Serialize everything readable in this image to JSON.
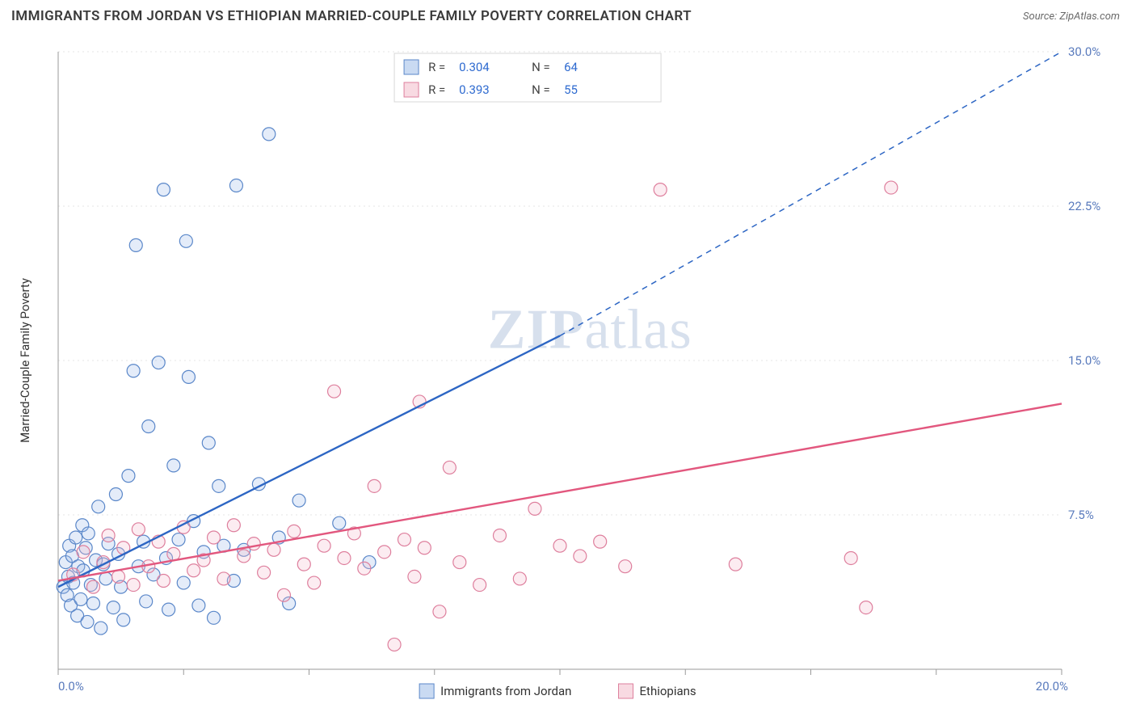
{
  "title": "IMMIGRANTS FROM JORDAN VS ETHIOPIAN MARRIED-COUPLE FAMILY POVERTY CORRELATION CHART",
  "source_label": "Source: ZipAtlas.com",
  "watermark": "ZIPatlas",
  "y_axis_label": "Married-Couple Family Poverty",
  "chart": {
    "type": "scatter",
    "background_color": "#ffffff",
    "grid_color": "#e4e4e4",
    "grid_dash": "2,4",
    "axis_line_color": "#9a9a9a",
    "tick_color": "#9a9a9a",
    "axis_label_color": "#5a7bbd",
    "x": {
      "min": 0,
      "max": 20,
      "ticks": [
        0,
        2.5,
        5,
        7.5,
        10,
        12.5,
        15,
        17.5,
        20
      ],
      "tick_labels": {
        "0": "0.0%",
        "20": "20.0%"
      }
    },
    "y": {
      "min": 0,
      "max": 30,
      "grid": [
        7.5,
        15,
        22.5,
        30
      ],
      "grid_labels": {
        "7.5": "7.5%",
        "15": "15.0%",
        "22.5": "22.5%",
        "30": "30.0%"
      }
    },
    "marker_radius": 8,
    "marker_stroke_width": 1.2,
    "marker_fill_opacity": 0.28,
    "line_width": 2.4,
    "series": [
      {
        "id": "jordan",
        "label": "Immigrants from Jordan",
        "fill": "#9dbbe8",
        "stroke": "#5a87c9",
        "line_color": "#2d66c4",
        "R": "0.304",
        "N": "64",
        "trend": {
          "solid_to_x": 10,
          "y0": 4.0,
          "y_at_solid_end": 16.2,
          "y_at_xmax": 30.0
        },
        "points": [
          [
            0.1,
            4.0
          ],
          [
            0.15,
            5.2
          ],
          [
            0.18,
            3.6
          ],
          [
            0.2,
            4.5
          ],
          [
            0.22,
            6.0
          ],
          [
            0.25,
            3.1
          ],
          [
            0.28,
            5.5
          ],
          [
            0.3,
            4.2
          ],
          [
            0.35,
            6.4
          ],
          [
            0.38,
            2.6
          ],
          [
            0.4,
            5.0
          ],
          [
            0.45,
            3.4
          ],
          [
            0.48,
            7.0
          ],
          [
            0.5,
            4.8
          ],
          [
            0.55,
            5.9
          ],
          [
            0.58,
            2.3
          ],
          [
            0.6,
            6.6
          ],
          [
            0.65,
            4.1
          ],
          [
            0.7,
            3.2
          ],
          [
            0.75,
            5.3
          ],
          [
            0.8,
            7.9
          ],
          [
            0.85,
            2.0
          ],
          [
            0.9,
            5.1
          ],
          [
            0.95,
            4.4
          ],
          [
            1.0,
            6.1
          ],
          [
            1.1,
            3.0
          ],
          [
            1.15,
            8.5
          ],
          [
            1.2,
            5.6
          ],
          [
            1.25,
            4.0
          ],
          [
            1.3,
            2.4
          ],
          [
            1.4,
            9.4
          ],
          [
            1.5,
            14.5
          ],
          [
            1.55,
            20.6
          ],
          [
            1.6,
            5.0
          ],
          [
            1.7,
            6.2
          ],
          [
            1.75,
            3.3
          ],
          [
            1.8,
            11.8
          ],
          [
            1.9,
            4.6
          ],
          [
            2.0,
            14.9
          ],
          [
            2.1,
            23.3
          ],
          [
            2.15,
            5.4
          ],
          [
            2.2,
            2.9
          ],
          [
            2.3,
            9.9
          ],
          [
            2.4,
            6.3
          ],
          [
            2.5,
            4.2
          ],
          [
            2.55,
            20.8
          ],
          [
            2.6,
            14.2
          ],
          [
            2.7,
            7.2
          ],
          [
            2.8,
            3.1
          ],
          [
            2.9,
            5.7
          ],
          [
            3.0,
            11.0
          ],
          [
            3.1,
            2.5
          ],
          [
            3.2,
            8.9
          ],
          [
            3.3,
            6.0
          ],
          [
            3.5,
            4.3
          ],
          [
            3.55,
            23.5
          ],
          [
            3.7,
            5.8
          ],
          [
            4.0,
            9.0
          ],
          [
            4.2,
            26.0
          ],
          [
            4.4,
            6.4
          ],
          [
            4.6,
            3.2
          ],
          [
            4.8,
            8.2
          ],
          [
            5.6,
            7.1
          ],
          [
            6.2,
            5.2
          ]
        ]
      },
      {
        "id": "ethiopians",
        "label": "Ethiopians",
        "fill": "#f3bccb",
        "stroke": "#de7f9d",
        "line_color": "#e2577e",
        "R": "0.393",
        "N": "55",
        "trend": {
          "solid_to_x": 20,
          "y0": 4.3,
          "y_at_solid_end": 12.9,
          "y_at_xmax": 12.9
        },
        "points": [
          [
            0.3,
            4.6
          ],
          [
            0.5,
            5.7
          ],
          [
            0.7,
            4.0
          ],
          [
            0.9,
            5.2
          ],
          [
            1.0,
            6.5
          ],
          [
            1.2,
            4.5
          ],
          [
            1.3,
            5.9
          ],
          [
            1.5,
            4.1
          ],
          [
            1.6,
            6.8
          ],
          [
            1.8,
            5.0
          ],
          [
            2.0,
            6.2
          ],
          [
            2.1,
            4.3
          ],
          [
            2.3,
            5.6
          ],
          [
            2.5,
            6.9
          ],
          [
            2.7,
            4.8
          ],
          [
            2.9,
            5.3
          ],
          [
            3.1,
            6.4
          ],
          [
            3.3,
            4.4
          ],
          [
            3.5,
            7.0
          ],
          [
            3.7,
            5.5
          ],
          [
            3.9,
            6.1
          ],
          [
            4.1,
            4.7
          ],
          [
            4.3,
            5.8
          ],
          [
            4.5,
            3.6
          ],
          [
            4.7,
            6.7
          ],
          [
            4.9,
            5.1
          ],
          [
            5.1,
            4.2
          ],
          [
            5.3,
            6.0
          ],
          [
            5.5,
            13.5
          ],
          [
            5.7,
            5.4
          ],
          [
            5.9,
            6.6
          ],
          [
            6.1,
            4.9
          ],
          [
            6.3,
            8.9
          ],
          [
            6.5,
            5.7
          ],
          [
            6.7,
            1.2
          ],
          [
            6.9,
            6.3
          ],
          [
            7.1,
            4.5
          ],
          [
            7.2,
            13.0
          ],
          [
            7.3,
            5.9
          ],
          [
            7.6,
            2.8
          ],
          [
            7.8,
            9.8
          ],
          [
            8.0,
            5.2
          ],
          [
            8.4,
            4.1
          ],
          [
            8.8,
            6.5
          ],
          [
            9.2,
            4.4
          ],
          [
            9.5,
            7.8
          ],
          [
            10.0,
            6.0
          ],
          [
            10.4,
            5.5
          ],
          [
            10.8,
            6.2
          ],
          [
            11.3,
            5.0
          ],
          [
            12.0,
            23.3
          ],
          [
            13.5,
            5.1
          ],
          [
            15.8,
            5.4
          ],
          [
            16.1,
            3.0
          ],
          [
            16.6,
            23.4
          ]
        ]
      }
    ],
    "stat_box": {
      "border_color": "#d8d8d8",
      "bg": "#ffffff",
      "text_color": "#444444",
      "value_color": "#2f6bd0"
    },
    "bottom_legend": {
      "text_color": "#333333"
    }
  }
}
